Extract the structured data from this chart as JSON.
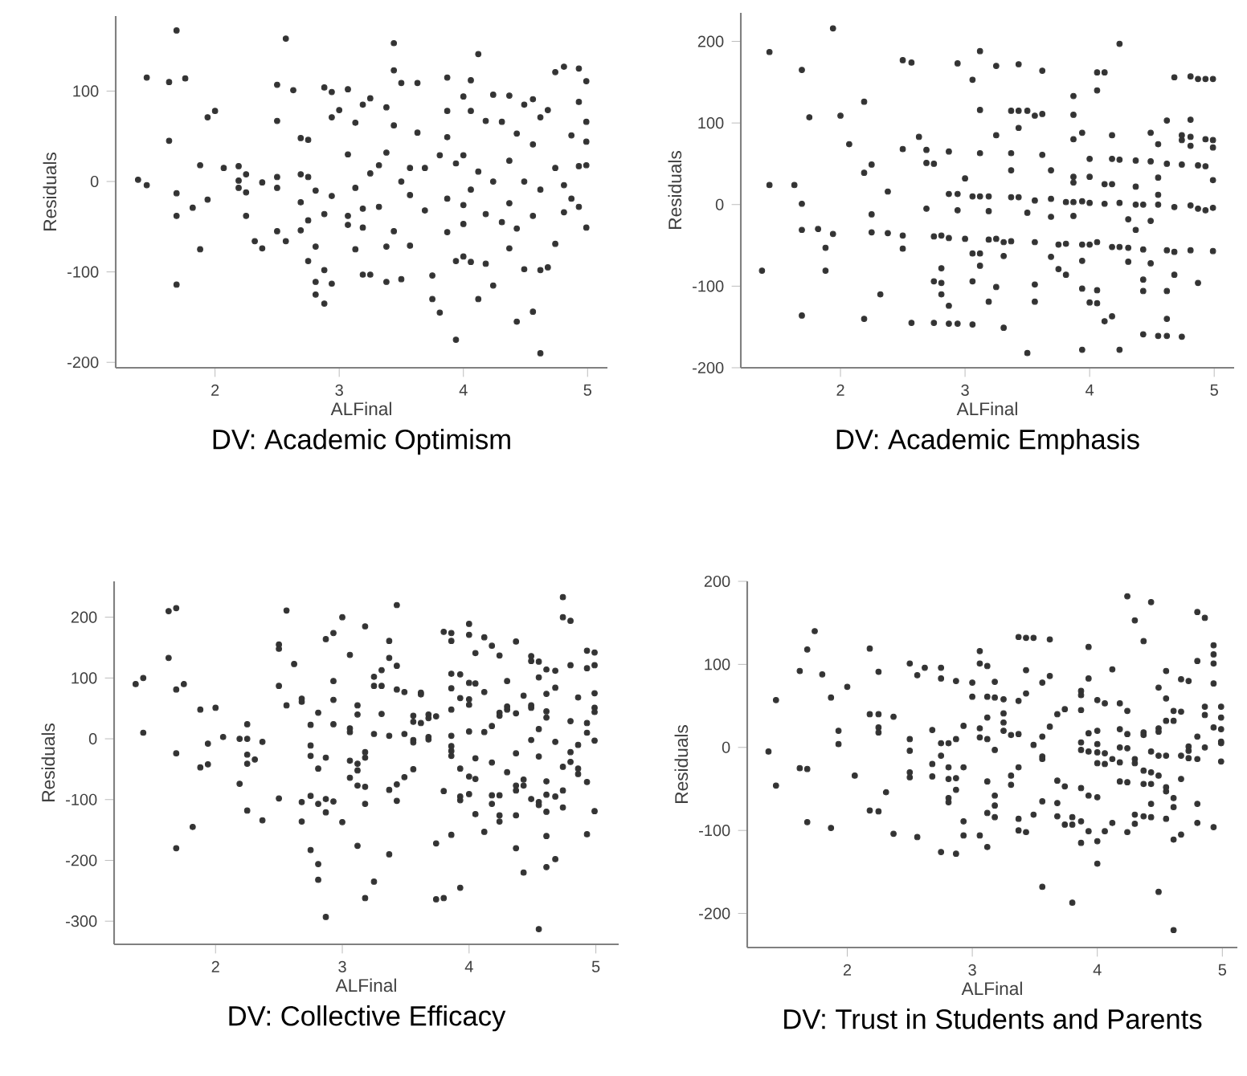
{
  "chart_data": [
    {
      "type": "scatter",
      "title": "DV: Academic Optimism",
      "xlabel": "ALFinal",
      "ylabel": "Residuals",
      "color": "#333333",
      "marker": "circle",
      "xlim": [
        1.2,
        5.16
      ],
      "ylim": [
        -206,
        183
      ],
      "xticks": [
        2,
        3,
        4,
        5
      ],
      "yticks": [
        -200,
        -100,
        0,
        100
      ],
      "x": [
        1.38,
        1.45,
        1.45,
        1.63,
        1.63,
        1.69,
        1.69,
        1.69,
        1.69,
        1.76,
        1.82,
        1.88,
        1.88,
        1.94,
        1.94,
        2.0,
        2.07,
        2.19,
        2.19,
        2.19,
        2.25,
        2.25,
        2.25,
        2.32,
        2.38,
        2.38,
        2.5,
        2.5,
        2.5,
        2.5,
        2.5,
        2.57,
        2.57,
        2.63,
        2.69,
        2.69,
        2.69,
        2.69,
        2.75,
        2.75,
        2.75,
        2.75,
        2.81,
        2.81,
        2.81,
        2.81,
        2.88,
        2.88,
        2.88,
        2.88,
        2.94,
        2.94,
        2.94,
        2.94,
        3.0,
        3.07,
        3.07,
        3.07,
        3.07,
        3.13,
        3.13,
        3.13,
        3.19,
        3.19,
        3.19,
        3.19,
        3.25,
        3.25,
        3.25,
        3.32,
        3.32,
        3.38,
        3.38,
        3.38,
        3.38,
        3.44,
        3.44,
        3.44,
        3.44,
        3.5,
        3.5,
        3.5,
        3.57,
        3.57,
        3.57,
        3.63,
        3.63,
        3.69,
        3.69,
        3.75,
        3.75,
        3.81,
        3.81,
        3.87,
        3.87,
        3.87,
        3.87,
        3.87,
        3.94,
        3.94,
        3.94,
        4.0,
        4.0,
        4.0,
        4.0,
        4.0,
        4.06,
        4.06,
        4.06,
        4.06,
        4.12,
        4.12,
        4.12,
        4.18,
        4.18,
        4.18,
        4.24,
        4.24,
        4.24,
        4.31,
        4.31,
        4.37,
        4.37,
        4.37,
        4.37,
        4.43,
        4.43,
        4.43,
        4.49,
        4.49,
        4.49,
        4.56,
        4.56,
        4.56,
        4.56,
        4.62,
        4.62,
        4.62,
        4.62,
        4.68,
        4.68,
        4.74,
        4.74,
        4.74,
        4.81,
        4.81,
        4.81,
        4.87,
        4.87,
        4.93,
        4.93,
        4.93,
        4.93,
        4.99,
        4.99,
        4.99,
        4.99,
        4.99
      ],
      "values": [
        2,
        -4,
        115,
        110,
        45,
        167,
        -13,
        -38,
        -114,
        114,
        -29,
        18,
        -75,
        71,
        -20,
        78,
        15,
        17,
        1,
        -7,
        8,
        -12,
        -38,
        -66,
        -1,
        -74,
        107,
        67,
        5,
        -7,
        -55,
        158,
        -66,
        101,
        48,
        8,
        -23,
        -54,
        46,
        5,
        -43,
        -88,
        -10,
        -72,
        -111,
        -125,
        -36,
        -98,
        -135,
        104,
        99,
        71,
        -16,
        -113,
        79,
        102,
        30,
        -38,
        -48,
        65,
        -7,
        -75,
        85,
        -30,
        -51,
        -103,
        92,
        9,
        -103,
        18,
        -28,
        82,
        32,
        -72,
        -111,
        153,
        123,
        62,
        -55,
        109,
        0,
        -108,
        15,
        -15,
        -71,
        109,
        54,
        -32,
        15,
        -104,
        -130,
        29,
        -145,
        115,
        78,
        49,
        -19,
        -56,
        -175,
        -88,
        20,
        94,
        29,
        -26,
        -47,
        -83,
        112,
        78,
        -9,
        -89,
        141,
        -130,
        11,
        67,
        -36,
        -91,
        96,
        0,
        -115,
        66,
        -45,
        95,
        23,
        -24,
        -74,
        53,
        -52,
        -155,
        85,
        0,
        -97,
        91,
        41,
        -38,
        -144,
        71,
        -9,
        -98,
        -190,
        79,
        -95,
        121,
        15,
        -69,
        127,
        -4,
        -34,
        51,
        -19,
        125,
        88,
        17,
        -28,
        111,
        66,
        44,
        18,
        -51
      ]
    },
    {
      "type": "scatter",
      "title": "DV: Academic Emphasis",
      "xlabel": "ALFinal",
      "ylabel": "Residuals",
      "color": "#333333",
      "marker": "circle",
      "xlim": [
        1.2,
        5.16
      ],
      "ylim": [
        -200,
        235
      ],
      "xticks": [
        2,
        3,
        4,
        5
      ],
      "yticks": [
        -200,
        -100,
        0,
        100,
        200
      ],
      "x": [
        1.37,
        1.43,
        1.43,
        1.63,
        1.69,
        1.69,
        1.69,
        1.69,
        1.75,
        1.82,
        1.88,
        1.88,
        1.94,
        1.94,
        2.0,
        2.07,
        2.19,
        2.19,
        2.19,
        2.25,
        2.25,
        2.25,
        2.32,
        2.38,
        2.38,
        2.5,
        2.5,
        2.5,
        2.5,
        2.57,
        2.57,
        2.63,
        2.69,
        2.69,
        2.69,
        2.75,
        2.75,
        2.75,
        2.75,
        2.81,
        2.81,
        2.81,
        2.81,
        2.87,
        2.87,
        2.87,
        2.87,
        2.87,
        2.94,
        2.94,
        2.94,
        2.94,
        3.0,
        3.0,
        3.06,
        3.06,
        3.06,
        3.06,
        3.06,
        3.12,
        3.12,
        3.12,
        3.12,
        3.12,
        3.12,
        3.19,
        3.19,
        3.19,
        3.19,
        3.25,
        3.25,
        3.25,
        3.25,
        3.31,
        3.31,
        3.31,
        3.37,
        3.37,
        3.37,
        3.37,
        3.37,
        3.43,
        3.43,
        3.43,
        3.43,
        3.5,
        3.5,
        3.5,
        3.56,
        3.56,
        3.56,
        3.56,
        3.56,
        3.62,
        3.62,
        3.62,
        3.69,
        3.69,
        3.69,
        3.69,
        3.75,
        3.75,
        3.81,
        3.81,
        3.81,
        3.87,
        3.87,
        3.87,
        3.87,
        3.87,
        3.87,
        3.87,
        3.94,
        3.94,
        3.94,
        3.94,
        3.94,
        3.94,
        4.0,
        4.0,
        4.0,
        4.0,
        4.0,
        4.06,
        4.06,
        4.06,
        4.06,
        4.06,
        4.12,
        4.12,
        4.12,
        4.12,
        4.18,
        4.18,
        4.18,
        4.18,
        4.18,
        4.24,
        4.24,
        4.24,
        4.24,
        4.24,
        4.31,
        4.31,
        4.31,
        4.37,
        4.37,
        4.37,
        4.37,
        4.43,
        4.43,
        4.43,
        4.43,
        4.43,
        4.49,
        4.49,
        4.49,
        4.49,
        4.55,
        4.55,
        4.55,
        4.55,
        4.55,
        4.62,
        4.62,
        4.62,
        4.62,
        4.62,
        4.62,
        4.68,
        4.68,
        4.68,
        4.68,
        4.74,
        4.74,
        4.74,
        4.74,
        4.81,
        4.81,
        4.81,
        4.81,
        4.81,
        4.81,
        4.87,
        4.87,
        4.87,
        4.87,
        4.93,
        4.93,
        4.93,
        4.93,
        4.99,
        4.99,
        4.99,
        4.99,
        4.99,
        4.99
      ],
      "values": [
        -81,
        187,
        24,
        24,
        165,
        1,
        -31,
        -136,
        107,
        -30,
        -53,
        -81,
        216,
        -36,
        109,
        74,
        126,
        39,
        -140,
        49,
        -12,
        -34,
        -110,
        16,
        -35,
        177,
        68,
        -38,
        -54,
        174,
        -145,
        83,
        67,
        51,
        -5,
        50,
        -39,
        -94,
        -145,
        -38,
        -78,
        -110,
        -96,
        65,
        13,
        -41,
        -124,
        -146,
        173,
        13,
        -7,
        -146,
        32,
        -42,
        153,
        10,
        -60,
        -94,
        -147,
        188,
        116,
        63,
        10,
        -60,
        -75,
        10,
        -8,
        -43,
        -119,
        170,
        85,
        -42,
        -101,
        -46,
        -63,
        -151,
        115,
        63,
        42,
        9,
        -45,
        172,
        115,
        94,
        9,
        115,
        -10,
        -182,
        109,
        5,
        -46,
        -98,
        -119,
        164,
        111,
        61,
        42,
        7,
        -15,
        -64,
        -49,
        -79,
        3,
        -48,
        -86,
        133,
        110,
        80,
        34,
        27,
        3,
        -14,
        88,
        4,
        -49,
        -69,
        -103,
        -178,
        56,
        34,
        2,
        -49,
        -120,
        162,
        140,
        -46,
        -105,
        -121,
        162,
        25,
        1,
        -143,
        85,
        56,
        25,
        -52,
        -137,
        197,
        55,
        2,
        -52,
        -178,
        -18,
        -53,
        -70,
        54,
        22,
        0,
        -31,
        0,
        -55,
        -92,
        -106,
        -159,
        88,
        53,
        -20,
        -72,
        74,
        33,
        12,
        0,
        -161,
        103,
        50,
        -56,
        -106,
        -140,
        -161,
        156,
        -3,
        -58,
        -86,
        85,
        79,
        49,
        -162,
        157,
        104,
        83,
        72,
        -1,
        -56,
        154,
        48,
        -5,
        -96,
        154,
        80,
        47,
        -7,
        154,
        79,
        70,
        30,
        -4,
        -57
      ]
    },
    {
      "type": "scatter",
      "title": "DV: Collective Efficacy",
      "xlabel": "ALFinal",
      "ylabel": "Residuals",
      "color": "#333333",
      "marker": "circle",
      "xlim": [
        1.2,
        5.18
      ],
      "ylim": [
        -338,
        259
      ],
      "xticks": [
        2,
        3,
        4,
        5
      ],
      "yticks": [
        -300,
        -200,
        -100,
        0,
        100,
        200
      ],
      "x": [
        1.37,
        1.43,
        1.43,
        1.63,
        1.63,
        1.69,
        1.69,
        1.69,
        1.69,
        1.75,
        1.82,
        1.88,
        1.88,
        1.94,
        1.94,
        2.0,
        2.06,
        2.19,
        2.19,
        2.25,
        2.25,
        2.25,
        2.25,
        2.25,
        2.31,
        2.37,
        2.37,
        2.5,
        2.5,
        2.5,
        2.5,
        2.56,
        2.56,
        2.62,
        2.68,
        2.68,
        2.68,
        2.68,
        2.75,
        2.75,
        2.75,
        2.75,
        2.75,
        2.81,
        2.81,
        2.81,
        2.81,
        2.81,
        2.87,
        2.87,
        2.87,
        2.87,
        2.87,
        2.93,
        2.93,
        2.93,
        2.93,
        2.93,
        3.0,
        3.0,
        3.06,
        3.06,
        3.06,
        3.06,
        3.06,
        3.12,
        3.12,
        3.12,
        3.12,
        3.12,
        3.12,
        3.18,
        3.18,
        3.18,
        3.18,
        3.18,
        3.18,
        3.25,
        3.25,
        3.25,
        3.25,
        3.31,
        3.31,
        3.31,
        3.37,
        3.37,
        3.37,
        3.37,
        3.37,
        3.43,
        3.43,
        3.43,
        3.43,
        3.43,
        3.49,
        3.49,
        3.49,
        3.56,
        3.56,
        3.56,
        3.56,
        3.56,
        3.62,
        3.62,
        3.62,
        3.68,
        3.68,
        3.68,
        3.68,
        3.74,
        3.74,
        3.74,
        3.8,
        3.8,
        3.8,
        3.86,
        3.86,
        3.86,
        3.86,
        3.86,
        3.86,
        3.86,
        3.86,
        3.86,
        3.86,
        3.93,
        3.93,
        3.93,
        3.93,
        3.93,
        3.93,
        4.0,
        4.0,
        4.0,
        4.0,
        4.0,
        4.0,
        4.0,
        4.0,
        4.05,
        4.05,
        4.05,
        4.05,
        4.05,
        4.12,
        4.12,
        4.12,
        4.12,
        4.18,
        4.18,
        4.18,
        4.18,
        4.18,
        4.24,
        4.24,
        4.24,
        4.24,
        4.24,
        4.24,
        4.3,
        4.3,
        4.3,
        4.3,
        4.37,
        4.37,
        4.37,
        4.37,
        4.37,
        4.37,
        4.37,
        4.43,
        4.43,
        4.43,
        4.43,
        4.49,
        4.49,
        4.49,
        4.49,
        4.49,
        4.49,
        4.55,
        4.55,
        4.55,
        4.55,
        4.55,
        4.55,
        4.55,
        4.61,
        4.61,
        4.61,
        4.61,
        4.61,
        4.61,
        4.61,
        4.61,
        4.61,
        4.68,
        4.68,
        4.68,
        4.68,
        4.68,
        4.74,
        4.74,
        4.74,
        4.74,
        4.74,
        4.8,
        4.8,
        4.8,
        4.8,
        4.8,
        4.86,
        4.86,
        4.86,
        4.86,
        4.93,
        4.93,
        4.93,
        4.93,
        4.93,
        4.93,
        4.99,
        4.99,
        4.99,
        4.99,
        4.99,
        4.99,
        4.99
      ],
      "values": [
        90,
        100,
        10,
        210,
        133,
        215,
        81,
        -24,
        -180,
        90,
        -145,
        48,
        -47,
        -8,
        -42,
        51,
        3,
        0,
        -74,
        24,
        0,
        -26,
        -41,
        -118,
        -34,
        -5,
        -134,
        155,
        148,
        87,
        -98,
        211,
        55,
        123,
        66,
        61,
        -104,
        -136,
        23,
        -11,
        -28,
        -94,
        -183,
        43,
        -49,
        -107,
        -206,
        -232,
        164,
        -31,
        -99,
        -121,
        -293,
        174,
        95,
        64,
        24,
        -103,
        200,
        -137,
        138,
        17,
        11,
        -36,
        -64,
        55,
        40,
        -41,
        -52,
        -77,
        -176,
        185,
        -22,
        -31,
        -79,
        -107,
        -262,
        102,
        87,
        8,
        -235,
        113,
        87,
        41,
        161,
        133,
        5,
        -84,
        -190,
        220,
        120,
        81,
        -75,
        -102,
        77,
        8,
        -63,
        38,
        28,
        -2,
        -6,
        -50,
        76,
        73,
        26,
        40,
        34,
        3,
        -1,
        37,
        -172,
        -264,
        176,
        -86,
        -262,
        174,
        161,
        107,
        83,
        48,
        5,
        -12,
        -20,
        -28,
        -158,
        106,
        67,
        -49,
        -95,
        -101,
        -245,
        189,
        171,
        92,
        65,
        56,
        12,
        -62,
        -91,
        141,
        91,
        -32,
        -66,
        -124,
        167,
        77,
        11,
        -153,
        153,
        21,
        -39,
        -93,
        -107,
        137,
        43,
        38,
        -93,
        -126,
        -136,
        95,
        53,
        48,
        -55,
        160,
        42,
        -24,
        -77,
        -85,
        -126,
        -180,
        71,
        -67,
        -77,
        -220,
        136,
        128,
        55,
        51,
        -2,
        -99,
        127,
        101,
        16,
        -29,
        -104,
        -109,
        -313,
        114,
        74,
        45,
        35,
        -70,
        -92,
        -120,
        -160,
        -211,
        112,
        84,
        -5,
        -95,
        -198,
        233,
        200,
        -46,
        -85,
        -113,
        194,
        121,
        29,
        -22,
        -38,
        68,
        -10,
        -49,
        -58,
        145,
        116,
        26,
        10,
        -71,
        -157,
        142,
        121,
        75,
        51,
        44,
        -3,
        -119
      ]
    },
    {
      "type": "scatter",
      "title": "DV: Trust in Students and Parents",
      "xlabel": "ALFinal",
      "ylabel": "Residuals",
      "color": "#333333",
      "marker": "circle",
      "xlim": [
        1.2,
        5.12
      ],
      "ylim": [
        -241,
        200
      ],
      "xticks": [
        2,
        3,
        4,
        5
      ],
      "yticks": [
        -200,
        -100,
        0,
        100,
        200
      ],
      "x": [
        1.37,
        1.43,
        1.43,
        1.62,
        1.62,
        1.68,
        1.68,
        1.68,
        1.74,
        1.8,
        1.87,
        1.87,
        1.93,
        1.93,
        2.0,
        2.06,
        2.18,
        2.18,
        2.18,
        2.25,
        2.25,
        2.25,
        2.25,
        2.25,
        2.31,
        2.37,
        2.37,
        2.5,
        2.5,
        2.5,
        2.5,
        2.5,
        2.56,
        2.56,
        2.62,
        2.68,
        2.68,
        2.68,
        2.75,
        2.75,
        2.75,
        2.75,
        2.75,
        2.81,
        2.81,
        2.81,
        2.81,
        2.81,
        2.87,
        2.87,
        2.87,
        2.87,
        2.87,
        2.93,
        2.93,
        2.93,
        2.93,
        3.0,
        3.0,
        3.06,
        3.06,
        3.06,
        3.06,
        3.06,
        3.12,
        3.12,
        3.12,
        3.12,
        3.12,
        3.12,
        3.12,
        3.18,
        3.18,
        3.18,
        3.18,
        3.18,
        3.18,
        3.25,
        3.25,
        3.25,
        3.25,
        3.31,
        3.31,
        3.31,
        3.37,
        3.37,
        3.37,
        3.37,
        3.37,
        3.37,
        3.43,
        3.43,
        3.43,
        3.43,
        3.49,
        3.49,
        3.49,
        3.56,
        3.56,
        3.56,
        3.56,
        3.56,
        3.56,
        3.62,
        3.62,
        3.62,
        3.68,
        3.68,
        3.68,
        3.68,
        3.74,
        3.74,
        3.74,
        3.8,
        3.8,
        3.8,
        3.87,
        3.87,
        3.87,
        3.87,
        3.87,
        3.87,
        3.87,
        3.87,
        3.93,
        3.93,
        3.93,
        3.93,
        3.93,
        3.93,
        4.0,
        4.0,
        4.0,
        4.0,
        4.0,
        4.0,
        4.0,
        4.0,
        4.06,
        4.06,
        4.06,
        4.06,
        4.12,
        4.12,
        4.12,
        4.18,
        4.18,
        4.18,
        4.18,
        4.18,
        4.24,
        4.24,
        4.24,
        4.24,
        4.24,
        4.24,
        4.3,
        4.3,
        4.3,
        4.3,
        4.3,
        4.37,
        4.37,
        4.37,
        4.37,
        4.37,
        4.37,
        4.43,
        4.43,
        4.43,
        4.43,
        4.43,
        4.43,
        4.49,
        4.49,
        4.49,
        4.49,
        4.49,
        4.49,
        4.55,
        4.55,
        4.55,
        4.55,
        4.55,
        4.55,
        4.55,
        4.61,
        4.61,
        4.61,
        4.61,
        4.61,
        4.61,
        4.67,
        4.67,
        4.67,
        4.67,
        4.67,
        4.73,
        4.73,
        4.73,
        4.73,
        4.8,
        4.8,
        4.8,
        4.8,
        4.8,
        4.8,
        4.86,
        4.86,
        4.86,
        4.86,
        4.93,
        4.93,
        4.93,
        4.93,
        4.93,
        4.93,
        4.99,
        4.99,
        4.99,
        4.99,
        4.99,
        4.99
      ],
      "values": [
        -5,
        57,
        -46,
        92,
        -25,
        118,
        -26,
        -90,
        140,
        88,
        60,
        -97,
        20,
        4,
        73,
        -34,
        119,
        40,
        -76,
        40,
        24,
        18,
        91,
        -77,
        -54,
        37,
        -104,
        101,
        10,
        -4,
        -30,
        -36,
        87,
        -108,
        96,
        21,
        -20,
        -35,
        96,
        83,
        5,
        -10,
        -126,
        5,
        -24,
        -38,
        -61,
        -66,
        80,
        10,
        -37,
        -51,
        -128,
        26,
        -24,
        -89,
        -106,
        78,
        61,
        116,
        101,
        23,
        12,
        -106,
        98,
        61,
        36,
        10,
        -41,
        -79,
        -120,
        79,
        60,
        -3,
        -58,
        -70,
        -84,
        58,
        41,
        30,
        20,
        15,
        -34,
        -45,
        133,
        56,
        16,
        -24,
        -86,
        -100,
        132,
        93,
        65,
        -102,
        132,
        3,
        -81,
        78,
        13,
        -11,
        -14,
        -65,
        -168,
        130,
        86,
        25,
        40,
        -40,
        -67,
        -83,
        46,
        -47,
        -93,
        -84,
        -93,
        -187,
        68,
        63,
        45,
        6,
        -3,
        -49,
        -89,
        -115,
        121,
        83,
        17,
        -5,
        -58,
        -101,
        57,
        20,
        4,
        -6,
        -19,
        -60,
        -113,
        -140,
        53,
        -7,
        -20,
        -101,
        94,
        -14,
        -91,
        53,
        22,
        0,
        -18,
        -41,
        182,
        44,
        16,
        -1,
        -42,
        -102,
        153,
        -14,
        -19,
        -81,
        -92,
        128,
        18,
        15,
        -28,
        -44,
        -83,
        175,
        -5,
        -30,
        -44,
        -68,
        -84,
        72,
        23,
        19,
        -10,
        -34,
        -174,
        92,
        59,
        32,
        -10,
        -48,
        -53,
        -86,
        44,
        32,
        -61,
        -72,
        -111,
        -220,
        82,
        43,
        -10,
        -38,
        -105,
        80,
        1,
        -4,
        -13,
        163,
        104,
        13,
        -14,
        -68,
        -91,
        156,
        49,
        39,
        0,
        123,
        112,
        101,
        77,
        24,
        -96,
        49,
        36,
        22,
        7,
        5,
        -17
      ]
    }
  ]
}
